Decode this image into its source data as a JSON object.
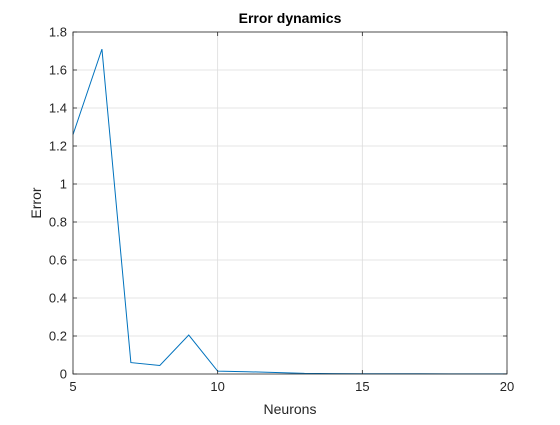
{
  "chart_data": {
    "type": "line",
    "title": "Error dynamics",
    "xlabel": "Neurons",
    "ylabel": "Error",
    "xlim": [
      5,
      20
    ],
    "ylim": [
      0,
      1.8
    ],
    "xticks": [
      5,
      10,
      15,
      20
    ],
    "yticks": [
      0,
      0.2,
      0.4,
      0.6,
      0.8,
      1,
      1.2,
      1.4,
      1.6,
      1.8
    ],
    "xtick_labels": [
      "5",
      "10",
      "15",
      "20"
    ],
    "ytick_labels": [
      "0",
      "0.2",
      "0.4",
      "0.6",
      "0.8",
      "1",
      "1.2",
      "1.4",
      "1.6",
      "1.8"
    ],
    "grid": true,
    "box": true,
    "series": [
      {
        "color": "#0072bd",
        "x": [
          5,
          6,
          7,
          8,
          9,
          10,
          11,
          12,
          13,
          14,
          15,
          16,
          17,
          18,
          19,
          20
        ],
        "y": [
          1.26,
          1.71,
          0.06,
          0.045,
          0.205,
          0.015,
          0.012,
          0.008,
          0.003,
          0.002,
          0.001,
          0.001,
          0.001,
          0.0005,
          0.0005,
          0.0005
        ]
      }
    ]
  }
}
